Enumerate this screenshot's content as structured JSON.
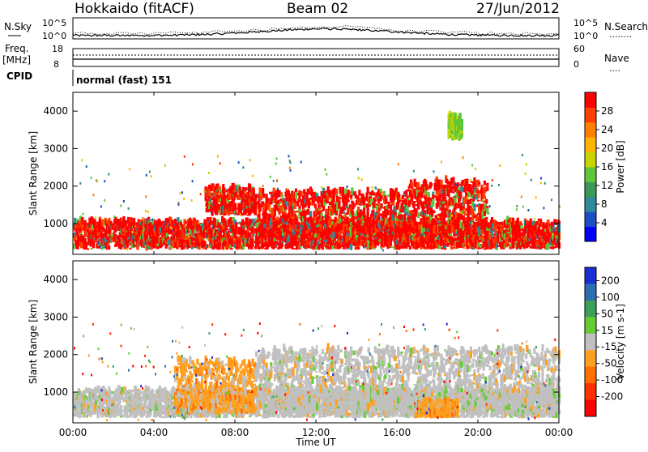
{
  "header": {
    "station": "Hokkaido (fitACF)",
    "beam": "Beam 02",
    "date": "27/Jun/2012"
  },
  "noise_panel": {
    "left_label": "N.Sky",
    "left_ticks": [
      "10^5",
      "10^0"
    ],
    "right_ticks": [
      "10^5",
      "10^0"
    ],
    "right_label": "N.Search",
    "right_dotted": "........"
  },
  "freq_panel": {
    "left_label_1": "Freq.",
    "left_label_2": "[MHz]",
    "left_ticks": [
      "18",
      "8"
    ],
    "right_ticks": [
      "60",
      "0"
    ],
    "right_label": "Nave",
    "right_dotted": "...."
  },
  "cpid_panel": {
    "label": "CPID",
    "mode": "normal (fast) 151"
  },
  "chart_data": [
    {
      "type": "heatmap",
      "name": "power",
      "ylabel": "Slant Range [km]",
      "y_ticks": [
        "1000",
        "2000",
        "3000",
        "4000"
      ],
      "y_values": [
        1000,
        2000,
        3000,
        4000
      ],
      "ylim": [
        180,
        4500
      ],
      "xlim": [
        0,
        24
      ],
      "colorbar": {
        "label": "Power [dB]",
        "ticks": [
          "4",
          "8",
          "12",
          "16",
          "20",
          "24",
          "28"
        ],
        "range": [
          0,
          30
        ],
        "colors": [
          "#0000ff",
          "#1d4fc4",
          "#2f8a9a",
          "#3b9a58",
          "#5ec83a",
          "#c8d400",
          "#ffb400",
          "#ff8000",
          "#ff4000",
          "#ff0000"
        ]
      },
      "echo_bands": [
        {
          "x": [
            0,
            24
          ],
          "range_km": [
            300,
            1000
          ],
          "level": "strong"
        },
        {
          "x": [
            6.5,
            9
          ],
          "range_km": [
            1200,
            1900
          ],
          "level": "strong"
        },
        {
          "x": [
            9,
            16.5
          ],
          "range_km": [
            600,
            1800
          ],
          "level": "strong"
        },
        {
          "x": [
            16.5,
            20.5
          ],
          "range_km": [
            700,
            2100
          ],
          "level": "strong"
        },
        {
          "x": [
            18.5,
            19.2
          ],
          "range_km": [
            3200,
            3800
          ],
          "level": "weak"
        }
      ]
    },
    {
      "type": "heatmap",
      "name": "velocity",
      "ylabel": "Slant Range [km]",
      "y_ticks": [
        "1000",
        "2000",
        "3000",
        "4000"
      ],
      "y_values": [
        1000,
        2000,
        3000,
        4000
      ],
      "ylim": [
        180,
        4500
      ],
      "xlim": [
        0,
        24
      ],
      "colorbar": {
        "label": "Velocity [m s-1]",
        "ticks": [
          "200",
          "100",
          "50",
          "15",
          "-15",
          "-50",
          "-100",
          "-200"
        ],
        "colors": [
          "#1a2fd0",
          "#2c6fb0",
          "#3aa05a",
          "#66cc33",
          "#c0c0c0",
          "#ffa020",
          "#ff7000",
          "#ff3000",
          "#ff0000"
        ]
      },
      "echo_bands": [
        {
          "x": [
            0,
            24
          ],
          "range_km": [
            300,
            1000
          ],
          "level": "ground"
        },
        {
          "x": [
            5,
            9
          ],
          "range_km": [
            400,
            1800
          ],
          "level": "negative"
        },
        {
          "x": [
            9,
            24
          ],
          "range_km": [
            500,
            2100
          ],
          "level": "ground"
        },
        {
          "x": [
            17,
            19
          ],
          "range_km": [
            300,
            700
          ],
          "level": "negative"
        }
      ]
    }
  ],
  "x_axis": {
    "ticks": [
      "00:00",
      "04:00",
      "08:00",
      "12:00",
      "16:00",
      "20:00",
      "00:00"
    ],
    "values": [
      0,
      4,
      8,
      12,
      16,
      20,
      24
    ],
    "label": "Time UT"
  }
}
